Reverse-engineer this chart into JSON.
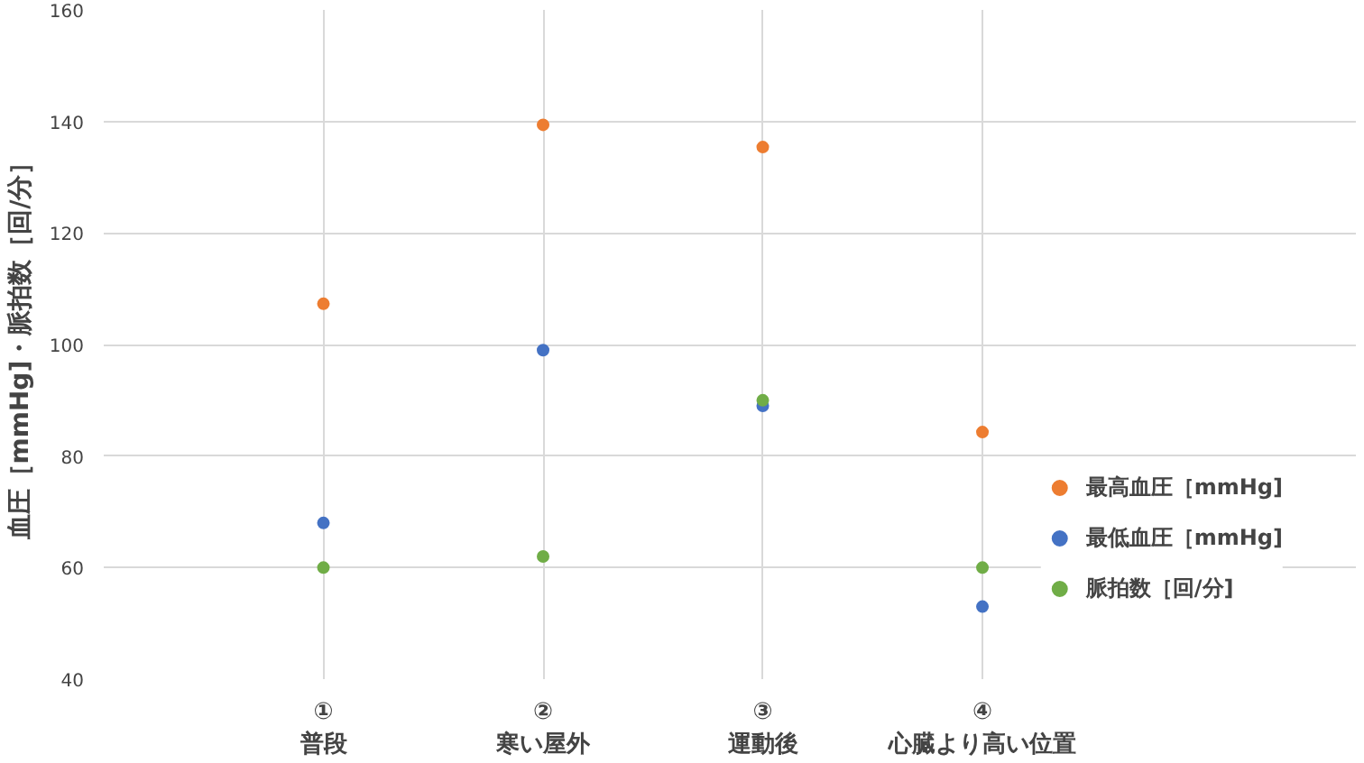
{
  "chart_data": {
    "type": "scatter",
    "ylabel": "血圧［mmHg]・脈拍数［回/分］",
    "categories": [
      "①\n普段",
      "②\n寒い屋外",
      "③\n運動後",
      "④\n心臓より高い位置"
    ],
    "series": [
      {
        "name": "最高血圧［mmHg]",
        "color": "#ed7d31",
        "values": [
          107.3,
          139.4,
          135.4,
          84.3
        ]
      },
      {
        "name": "最低血圧［mmHg]",
        "color": "#4472c4",
        "values": [
          68,
          99,
          89,
          53
        ]
      },
      {
        "name": "脈拍数［回/分]",
        "color": "#70ad47",
        "values": [
          60,
          62,
          90,
          60
        ]
      }
    ],
    "ylim": [
      40,
      160
    ],
    "yticks": [
      40,
      60,
      80,
      100,
      120,
      140,
      160
    ],
    "grid": true,
    "legend": "right",
    "marker": "circle"
  }
}
